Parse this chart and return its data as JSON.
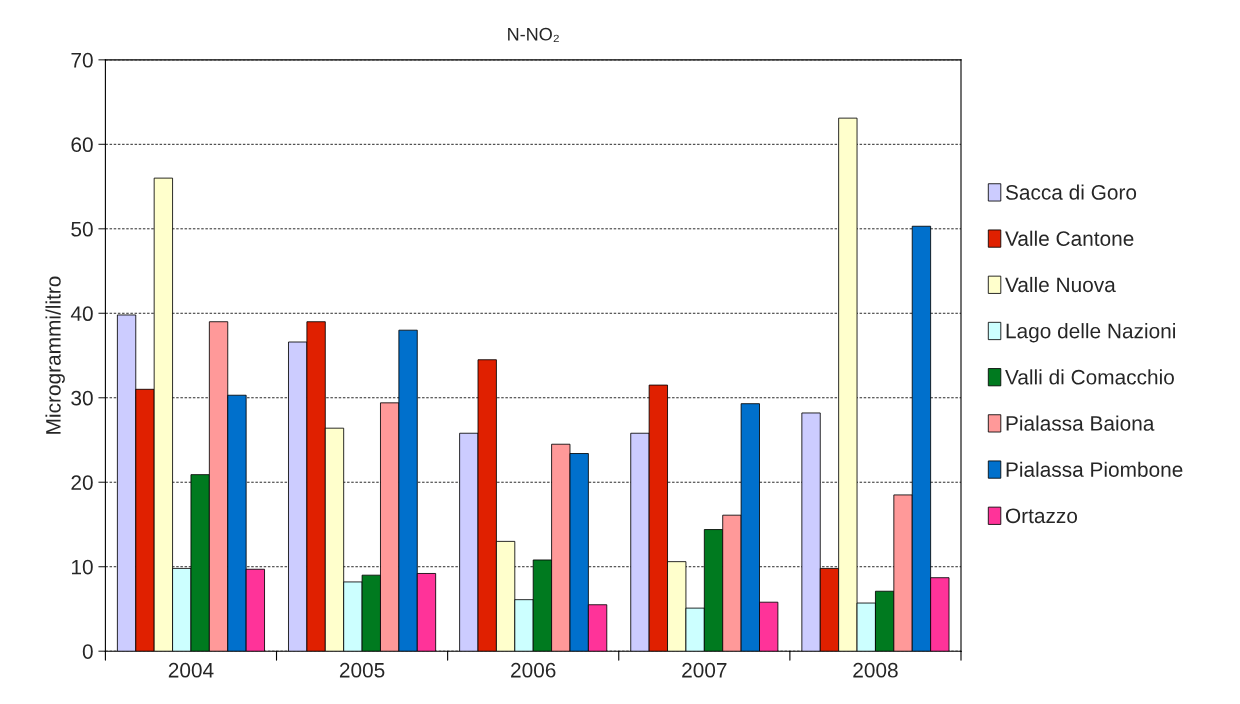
{
  "chart_data": {
    "type": "bar",
    "title": "N-NO₂",
    "ylabel": "Microgrammi/litro",
    "categories": [
      "2004",
      "2005",
      "2006",
      "2007",
      "2008"
    ],
    "series": [
      {
        "name": "Sacca di Goro",
        "color": "#ccccff",
        "values": [
          39.8,
          36.6,
          25.8,
          25.8,
          28.2
        ]
      },
      {
        "name": "Valle Cantone",
        "color": "#e02000",
        "values": [
          31,
          39,
          34.5,
          31.5,
          9.8
        ]
      },
      {
        "name": "Valle Nuova",
        "color": "#ffffcc",
        "values": [
          56,
          26.4,
          13,
          10.6,
          63.1
        ]
      },
      {
        "name": "Lago delle Nazioni",
        "color": "#ccffff",
        "values": [
          9.8,
          8.2,
          6.1,
          5.1,
          5.7
        ]
      },
      {
        "name": "Valli di Comacchio",
        "color": "#007a1f",
        "values": [
          20.9,
          9,
          10.8,
          14.4,
          7.1
        ]
      },
      {
        "name": "Pialassa Baiona",
        "color": "#ff9999",
        "values": [
          39,
          29.4,
          24.5,
          16.1,
          18.5
        ]
      },
      {
        "name": "Pialassa Piombone",
        "color": "#0070cc",
        "values": [
          30.3,
          38,
          23.4,
          29.3,
          50.3
        ]
      },
      {
        "name": "Ortazzo",
        "color": "#ff3399",
        "values": [
          9.7,
          9.2,
          5.5,
          5.8,
          8.7
        ]
      }
    ],
    "ylim": [
      0,
      70
    ],
    "yticks": [
      0,
      10,
      20,
      30,
      40,
      50,
      60,
      70
    ],
    "grid": "y",
    "legend": "right"
  }
}
